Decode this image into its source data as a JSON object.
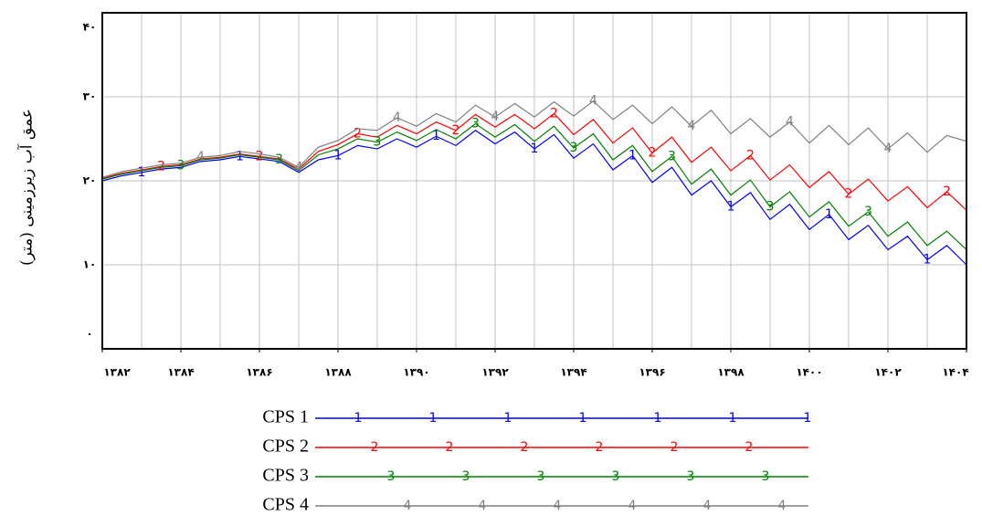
{
  "chart_data": {
    "type": "line",
    "y_label": "عمق آب زیرزمینی (متر)",
    "x": [
      1382,
      1382.5,
      1383,
      1383.5,
      1384,
      1384.5,
      1385,
      1385.5,
      1386,
      1386.5,
      1387,
      1387.5,
      1388,
      1388.5,
      1389,
      1389.5,
      1390,
      1390.5,
      1391,
      1391.5,
      1392,
      1392.5,
      1393,
      1393.5,
      1394,
      1394.5,
      1395,
      1395.5,
      1396,
      1396.5,
      1397,
      1397.5,
      1398,
      1398.5,
      1399,
      1399.5,
      1400,
      1400.5,
      1401,
      1401.5,
      1402,
      1402.5,
      1403,
      1403.5,
      1404
    ],
    "xlim": [
      1382,
      1404
    ],
    "xticks": [
      {
        "value": 1382,
        "label": "۱۳۸۲"
      },
      {
        "value": 1384,
        "label": "۱۳۸۴"
      },
      {
        "value": 1386,
        "label": "۱۳۸۶"
      },
      {
        "value": 1388,
        "label": "۱۳۸۸"
      },
      {
        "value": 1390,
        "label": "۱۳۹۰"
      },
      {
        "value": 1392,
        "label": "۱۳۹۲"
      },
      {
        "value": 1394,
        "label": "۱۳۹۴"
      },
      {
        "value": 1396,
        "label": "۱۳۹۶"
      },
      {
        "value": 1398,
        "label": "۱۳۹۸"
      },
      {
        "value": 1400,
        "label": "۱۴۰۰"
      },
      {
        "value": 1402,
        "label": "۱۴۰۲"
      },
      {
        "value": 1404,
        "label": "۱۴۰۴"
      }
    ],
    "xgrid": [
      1383,
      1384,
      1385,
      1386,
      1387,
      1388,
      1389,
      1390,
      1391,
      1392,
      1393,
      1394,
      1395,
      1396,
      1397,
      1398,
      1399,
      1400,
      1401,
      1402,
      1403
    ],
    "ylim": [
      0,
      40
    ],
    "yticks": [
      {
        "value": 0,
        "label": "۰"
      },
      {
        "value": 10,
        "label": "۱۰"
      },
      {
        "value": 20,
        "label": "۲۰"
      },
      {
        "value": 30,
        "label": "۳۰"
      },
      {
        "value": 40,
        "label": "۴۰"
      }
    ],
    "grid": true,
    "series": [
      {
        "name": "CPS 1",
        "marker": "1",
        "color": "#0000ff",
        "values": [
          20.0,
          20.6,
          21.0,
          21.4,
          21.6,
          22.3,
          22.5,
          22.9,
          22.6,
          22.3,
          21.0,
          22.5,
          23.0,
          24.2,
          23.8,
          25.0,
          24.0,
          25.3,
          24.2,
          26.0,
          24.4,
          25.8,
          23.8,
          25.5,
          22.7,
          24.4,
          21.3,
          23.0,
          19.8,
          21.6,
          18.3,
          20.0,
          16.9,
          18.6,
          15.4,
          17.2,
          14.2,
          16.0,
          13.0,
          14.7,
          11.8,
          13.4,
          10.6,
          12.3,
          10.0
        ]
      },
      {
        "name": "CPS 2",
        "marker": "2",
        "color": "#ff0000",
        "values": [
          20.3,
          20.9,
          21.3,
          21.7,
          21.9,
          22.6,
          22.8,
          23.2,
          22.9,
          22.6,
          21.4,
          23.5,
          24.3,
          25.6,
          25.2,
          26.6,
          25.6,
          27.0,
          26.0,
          27.9,
          26.4,
          27.9,
          26.2,
          28.0,
          25.5,
          27.3,
          24.5,
          26.3,
          23.3,
          25.2,
          22.2,
          24.0,
          21.2,
          23.0,
          20.1,
          21.9,
          19.2,
          21.1,
          18.4,
          20.2,
          17.6,
          19.3,
          16.8,
          18.7,
          16.5
        ]
      },
      {
        "name": "CPS 3",
        "marker": "3",
        "color": "#008000",
        "values": [
          20.2,
          20.8,
          21.2,
          21.6,
          21.8,
          22.5,
          22.7,
          23.1,
          22.8,
          22.5,
          21.2,
          23.1,
          23.8,
          25.0,
          24.6,
          25.8,
          24.8,
          26.1,
          25.0,
          26.8,
          25.2,
          26.7,
          24.7,
          26.5,
          23.9,
          25.6,
          22.5,
          24.2,
          21.1,
          22.9,
          19.6,
          21.4,
          18.3,
          20.1,
          16.9,
          18.7,
          15.7,
          17.5,
          14.6,
          16.3,
          13.4,
          15.1,
          12.3,
          14.0,
          11.8
        ]
      },
      {
        "name": "CPS 4",
        "marker": "4",
        "color": "#808080",
        "values": [
          20.4,
          21.1,
          21.5,
          21.9,
          22.1,
          22.8,
          23.0,
          23.5,
          23.2,
          22.8,
          21.6,
          24.0,
          24.8,
          26.2,
          26.0,
          27.5,
          26.5,
          28.0,
          27.0,
          29.0,
          27.6,
          29.2,
          27.6,
          29.4,
          27.7,
          29.5,
          27.3,
          29.0,
          26.8,
          28.8,
          26.5,
          28.4,
          25.6,
          27.4,
          25.2,
          27.0,
          24.5,
          26.6,
          24.3,
          26.3,
          23.8,
          25.7,
          23.4,
          25.4,
          24.7
        ]
      }
    ]
  }
}
